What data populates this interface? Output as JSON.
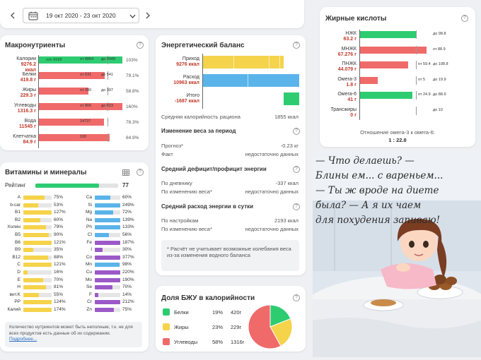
{
  "header": {
    "date_range": "19 окт 2020 - 23 окт 2020",
    "calendar_icon": "calendar-icon",
    "prev_icon": "chevron-left-icon",
    "dropdown_icon": "chevron-down-icon",
    "next_icon": "chevron-right-icon"
  },
  "macro": {
    "title": "Макронутриенты",
    "help": "?",
    "rows": [
      {
        "name": "Калории",
        "value": "9276.2",
        "unit": "ккал",
        "min": "min 8688",
        "from": "от 8864",
        "to": "до 9049",
        "pct": "103%",
        "fill": 1.0,
        "color": "#2ecc71"
      },
      {
        "name": "Белки",
        "value": "419.8 г",
        "unit": "",
        "min": "",
        "from": "от 531",
        "to": "до 541",
        "pct": "79.1%",
        "fill": 0.79,
        "color": "#f06a6a"
      },
      {
        "name": "Жиры",
        "value": "229.3 г",
        "unit": "",
        "min": "",
        "from": "от 390",
        "to": "до 397",
        "pct": "58.8%",
        "fill": 0.59,
        "color": "#f06a6a"
      },
      {
        "name": "Углеводы",
        "value": "1316.3 г",
        "unit": "",
        "min": "",
        "from": "от 806",
        "to": "до 823",
        "pct": "160%",
        "fill": 1.0,
        "color": "#f06a6a"
      },
      {
        "name": "Вода",
        "value": "11545 г",
        "unit": "",
        "min": "",
        "from": "14737",
        "to": "",
        "pct": "78.3%",
        "fill": 0.78,
        "color": "#f06a6a"
      },
      {
        "name": "Клетчатка",
        "value": "84.9 г",
        "unit": "",
        "min": "",
        "from": "100",
        "to": "",
        "pct": "84.9%",
        "fill": 0.85,
        "color": "#f06a6a"
      }
    ]
  },
  "vitamins": {
    "title": "Витамины и минералы",
    "rating_label": "Рейтинг",
    "rating_value": "77",
    "rating_fill": 0.77,
    "left": [
      {
        "name": "A",
        "pct": "75%",
        "fill": 0.75
      },
      {
        "name": "b-car",
        "pct": "53%",
        "fill": 0.53
      },
      {
        "name": "B1",
        "pct": "127%",
        "fill": 1.0
      },
      {
        "name": "B2",
        "pct": "60%",
        "fill": 0.6
      },
      {
        "name": "Холин",
        "pct": "79%",
        "fill": 0.79
      },
      {
        "name": "B5",
        "pct": "90%",
        "fill": 0.9
      },
      {
        "name": "B6",
        "pct": "121%",
        "fill": 1.0
      },
      {
        "name": "B9",
        "pct": "35%",
        "fill": 0.35
      },
      {
        "name": "B12",
        "pct": "88%",
        "fill": 0.88
      },
      {
        "name": "C",
        "pct": "121%",
        "fill": 1.0
      },
      {
        "name": "D",
        "pct": "16%",
        "fill": 0.16
      },
      {
        "name": "E",
        "pct": "70%",
        "fill": 0.7
      },
      {
        "name": "H",
        "pct": "81%",
        "fill": 0.81
      },
      {
        "name": "вит.K",
        "pct": "55%",
        "fill": 0.55
      },
      {
        "name": "PP",
        "pct": "124%",
        "fill": 1.0
      },
      {
        "name": "Калий",
        "pct": "174%",
        "fill": 1.0
      }
    ],
    "right": [
      {
        "name": "Ca",
        "pct": "60%",
        "fill": 0.6
      },
      {
        "name": "Si",
        "pct": "249%",
        "fill": 1.0
      },
      {
        "name": "Mg",
        "pct": "72%",
        "fill": 0.72
      },
      {
        "name": "Na",
        "pct": "139%",
        "fill": 1.0
      },
      {
        "name": "Ph",
        "pct": "133%",
        "fill": 1.0
      },
      {
        "name": "Cl",
        "pct": "56%",
        "fill": 0.56
      },
      {
        "name": "Fe",
        "pct": "187%",
        "fill": 1.0
      },
      {
        "name": "I",
        "pct": "30%",
        "fill": 0.3
      },
      {
        "name": "Co",
        "pct": "377%",
        "fill": 1.0
      },
      {
        "name": "Mn",
        "pct": "98%",
        "fill": 0.98
      },
      {
        "name": "Cu",
        "pct": "220%",
        "fill": 1.0
      },
      {
        "name": "Mo",
        "pct": "190%",
        "fill": 1.0
      },
      {
        "name": "Se",
        "pct": "70%",
        "fill": 0.7
      },
      {
        "name": "F",
        "pct": "14%",
        "fill": 0.14
      },
      {
        "name": "Cr",
        "pct": "212%",
        "fill": 1.0
      },
      {
        "name": "Zn",
        "pct": "75%",
        "fill": 0.75
      }
    ],
    "note": "Количество нутриентов может быть неполным, т.к. не для всех продуктов есть данные об их содержании.",
    "note_link": "Подробнее..."
  },
  "energy": {
    "title": "Энергетический баланс",
    "intake_label": "Приход",
    "intake_value": "9276 ккал",
    "expense_label": "Расход",
    "expense_value": "10963 ккал",
    "total_label": "Итого",
    "total_value": "-1687 ккал",
    "avg_label": "Средняя калорийность рациона",
    "avg_value": "1855 ккал",
    "weight_title": "Изменение веса за период",
    "forecast_label": "Прогноз*",
    "forecast_value": "-0.23 кг",
    "fact_label": "Факт",
    "fact_value": "недостаточно данных",
    "deficit_title": "Средний дефицит/профицит энергии",
    "diary_label": "По дневнику",
    "diary_value": "-337 ккал",
    "weight_change_label": "По изменению веса*",
    "weight_change_value": "недостаточно данных",
    "spend_title": "Средний расход энергии в сутки",
    "settings_label": "По настройкам",
    "settings_value": "2193 ккал",
    "weight_change2_label": "По изменению веса*",
    "weight_change2_value": "недостаточно данных",
    "footnote": "* Расчёт не учитывает возможные колебания веса из-за изменения водного баланса"
  },
  "bju": {
    "title": "Доля БЖУ в калорийности",
    "rows": [
      {
        "name": "Белки",
        "pct": "19%",
        "grams": "420г",
        "color": "#2ecc71",
        "share": 0.19
      },
      {
        "name": "Жиры",
        "pct": "23%",
        "grams": "229г",
        "color": "#f5d34a",
        "share": 0.23
      },
      {
        "name": "Углеводы",
        "pct": "58%",
        "grams": "1316г",
        "color": "#f06a6a",
        "share": 0.58
      }
    ]
  },
  "fatty": {
    "title": "Жирные кислоты",
    "rows": [
      {
        "name": "НЖК",
        "value": "63.2 г",
        "from": "",
        "to": "до 98.8",
        "fill": 0.64,
        "color": "#2ecc71"
      },
      {
        "name": "МНЖК",
        "value": "67.276 г",
        "from": "",
        "to": "от 88.9",
        "fill": 0.76,
        "color": "#f06a6a"
      },
      {
        "name": "ПНЖК",
        "value": "44.079 г",
        "from": "от 59.4",
        "to": "до 108.8",
        "fill": 0.55,
        "color": "#f06a6a"
      },
      {
        "name": "Омега-3",
        "value": "1.8 г",
        "from": "от 5",
        "to": "до 19.9",
        "fill": 0.2,
        "color": "#f06a6a"
      },
      {
        "name": "Омега-6",
        "value": "41 г",
        "from": "от 24.9",
        "to": "до 88.9",
        "fill": 0.6,
        "color": "#2ecc71"
      },
      {
        "name": "Трансжиры",
        "value": "0 г",
        "from": "",
        "to": "до 10",
        "fill": 0.0,
        "color": "#2ecc71"
      }
    ],
    "ratio_label": "Отношение омега-3 к омега-6:",
    "ratio_value": "1 : 22.8"
  },
  "meme": {
    "line1": "— Что делаешь? —",
    "line2": "Блины ем... с вареньем...",
    "line3": "— Ты ж вроде на диете",
    "line4": "была? — А я их чаем",
    "line5": "для похудения запиваю!"
  }
}
